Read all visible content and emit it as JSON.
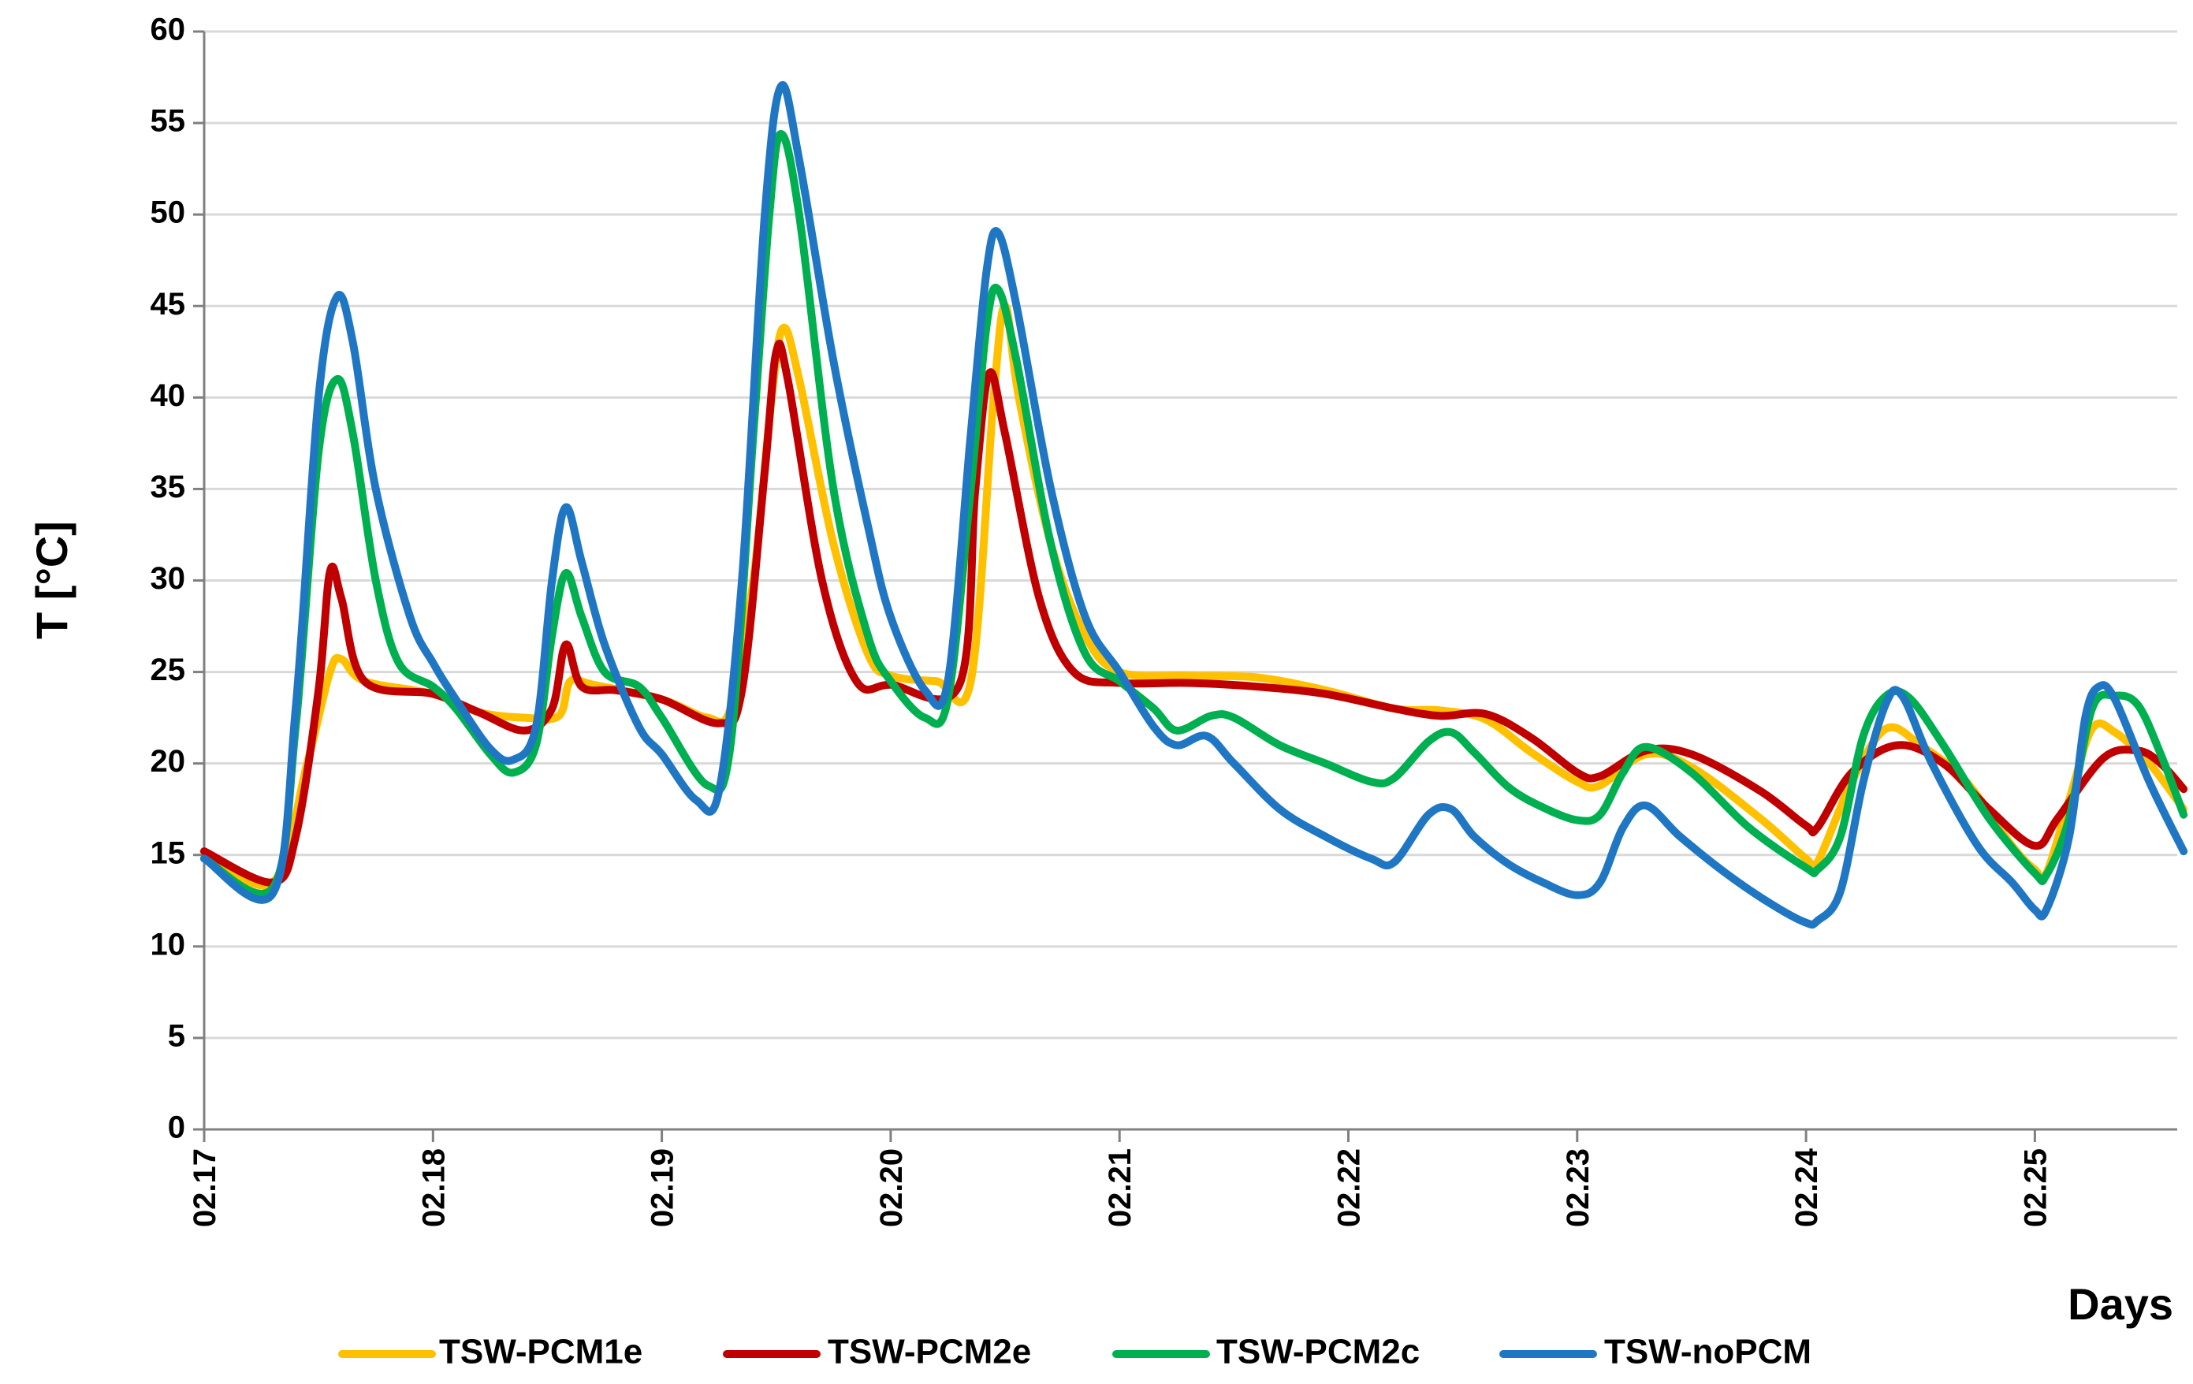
{
  "chart_data": {
    "type": "line",
    "title": "",
    "xlabel": "Days",
    "ylabel": "T [°C]",
    "xlim": [
      0,
      8.65
    ],
    "ylim": [
      0,
      60
    ],
    "yticks": [
      0,
      5,
      10,
      15,
      20,
      25,
      30,
      35,
      40,
      45,
      50,
      55,
      60
    ],
    "xticks": [
      {
        "x": 0,
        "label": "02.17"
      },
      {
        "x": 1,
        "label": "02.18"
      },
      {
        "x": 2,
        "label": "02.19"
      },
      {
        "x": 3,
        "label": "02.20"
      },
      {
        "x": 4,
        "label": "02.21"
      },
      {
        "x": 5,
        "label": "02.22"
      },
      {
        "x": 6,
        "label": "02.23"
      },
      {
        "x": 7,
        "label": "02.24"
      },
      {
        "x": 8,
        "label": "02.25"
      }
    ],
    "grid": true,
    "legend_position": "bottom",
    "series": [
      {
        "name": "TSW-PCM1e",
        "color": "#FFC000",
        "points": [
          [
            0,
            15.2
          ],
          [
            0.3,
            13.5
          ],
          [
            0.45,
            20
          ],
          [
            0.55,
            25
          ],
          [
            0.6,
            25.7
          ],
          [
            0.7,
            24.5
          ],
          [
            1.0,
            23.8
          ],
          [
            1.2,
            22.8
          ],
          [
            1.4,
            22.5
          ],
          [
            1.55,
            22.6
          ],
          [
            1.6,
            24.5
          ],
          [
            1.7,
            24.3
          ],
          [
            2.0,
            23.5
          ],
          [
            2.2,
            22.5
          ],
          [
            2.3,
            23
          ],
          [
            2.4,
            30
          ],
          [
            2.48,
            40
          ],
          [
            2.53,
            43.8
          ],
          [
            2.6,
            41
          ],
          [
            2.75,
            32
          ],
          [
            2.9,
            26
          ],
          [
            3.0,
            24.8
          ],
          [
            3.2,
            24.5
          ],
          [
            3.35,
            24.5
          ],
          [
            3.45,
            40
          ],
          [
            3.5,
            45
          ],
          [
            3.56,
            40
          ],
          [
            3.7,
            32
          ],
          [
            3.85,
            27
          ],
          [
            4.0,
            25
          ],
          [
            4.3,
            24.8
          ],
          [
            4.6,
            24.7
          ],
          [
            4.9,
            24
          ],
          [
            5.2,
            23
          ],
          [
            5.4,
            22.9
          ],
          [
            5.6,
            22.4
          ],
          [
            5.8,
            20.6
          ],
          [
            6.0,
            19
          ],
          [
            6.1,
            18.8
          ],
          [
            6.3,
            20.5
          ],
          [
            6.5,
            19.8
          ],
          [
            6.8,
            17
          ],
          [
            7.0,
            14.8
          ],
          [
            7.05,
            14.6
          ],
          [
            7.2,
            19
          ],
          [
            7.35,
            21.9
          ],
          [
            7.5,
            21
          ],
          [
            7.7,
            19
          ],
          [
            7.9,
            15.5
          ],
          [
            8.0,
            14.2
          ],
          [
            8.05,
            14
          ],
          [
            8.15,
            18
          ],
          [
            8.25,
            21.9
          ],
          [
            8.35,
            21.7
          ],
          [
            8.5,
            20
          ],
          [
            8.65,
            17.5
          ]
        ]
      },
      {
        "name": "TSW-PCM2e",
        "color": "#C00000",
        "points": [
          [
            0,
            15.2
          ],
          [
            0.3,
            13.5
          ],
          [
            0.4,
            16
          ],
          [
            0.5,
            24
          ],
          [
            0.55,
            30.5
          ],
          [
            0.6,
            29
          ],
          [
            0.7,
            24.5
          ],
          [
            1.0,
            23.8
          ],
          [
            1.2,
            22.8
          ],
          [
            1.4,
            21.8
          ],
          [
            1.52,
            23
          ],
          [
            1.58,
            26.5
          ],
          [
            1.65,
            24.2
          ],
          [
            1.8,
            24
          ],
          [
            2.0,
            23.5
          ],
          [
            2.25,
            22.2
          ],
          [
            2.35,
            24
          ],
          [
            2.45,
            36
          ],
          [
            2.5,
            42.5
          ],
          [
            2.55,
            41
          ],
          [
            2.7,
            30
          ],
          [
            2.85,
            24.5
          ],
          [
            3.0,
            24.3
          ],
          [
            3.3,
            24.3
          ],
          [
            3.37,
            35
          ],
          [
            3.43,
            41.3
          ],
          [
            3.5,
            38
          ],
          [
            3.65,
            29
          ],
          [
            3.8,
            25
          ],
          [
            4.0,
            24.4
          ],
          [
            4.3,
            24.4
          ],
          [
            4.6,
            24.2
          ],
          [
            4.9,
            23.8
          ],
          [
            5.2,
            23
          ],
          [
            5.4,
            22.6
          ],
          [
            5.6,
            22.7
          ],
          [
            5.8,
            21.4
          ],
          [
            6.0,
            19.5
          ],
          [
            6.1,
            19.3
          ],
          [
            6.3,
            20.7
          ],
          [
            6.5,
            20.5
          ],
          [
            6.8,
            18.5
          ],
          [
            7.0,
            16.6
          ],
          [
            7.05,
            16.5
          ],
          [
            7.2,
            19.5
          ],
          [
            7.4,
            21
          ],
          [
            7.6,
            20
          ],
          [
            7.8,
            17.5
          ],
          [
            8.0,
            15.5
          ],
          [
            8.1,
            17
          ],
          [
            8.3,
            20.3
          ],
          [
            8.45,
            20.7
          ],
          [
            8.55,
            20
          ],
          [
            8.65,
            18.6
          ]
        ]
      },
      {
        "name": "TSW-PCM2c",
        "color": "#00B050",
        "points": [
          [
            0,
            14.8
          ],
          [
            0.3,
            13.2
          ],
          [
            0.4,
            22
          ],
          [
            0.5,
            37
          ],
          [
            0.58,
            41
          ],
          [
            0.65,
            38
          ],
          [
            0.75,
            30
          ],
          [
            0.85,
            25.5
          ],
          [
            1.0,
            24.2
          ],
          [
            1.1,
            23
          ],
          [
            1.25,
            20.5
          ],
          [
            1.35,
            19.5
          ],
          [
            1.45,
            21
          ],
          [
            1.52,
            27
          ],
          [
            1.58,
            30.4
          ],
          [
            1.65,
            28
          ],
          [
            1.75,
            25
          ],
          [
            1.9,
            24.2
          ],
          [
            2.0,
            22.5
          ],
          [
            2.2,
            18.8
          ],
          [
            2.3,
            21
          ],
          [
            2.4,
            38
          ],
          [
            2.47,
            50
          ],
          [
            2.52,
            54.4
          ],
          [
            2.6,
            50
          ],
          [
            2.75,
            35
          ],
          [
            2.9,
            27
          ],
          [
            3.0,
            24.5
          ],
          [
            3.15,
            22.5
          ],
          [
            3.25,
            23.5
          ],
          [
            3.35,
            35
          ],
          [
            3.42,
            44
          ],
          [
            3.47,
            45.9
          ],
          [
            3.55,
            42
          ],
          [
            3.7,
            32
          ],
          [
            3.85,
            26
          ],
          [
            4.0,
            24.5
          ],
          [
            4.15,
            23
          ],
          [
            4.25,
            21.8
          ],
          [
            4.4,
            22.6
          ],
          [
            4.5,
            22.5
          ],
          [
            4.7,
            21
          ],
          [
            4.9,
            20
          ],
          [
            5.1,
            19
          ],
          [
            5.2,
            19.2
          ],
          [
            5.35,
            21.2
          ],
          [
            5.45,
            21.7
          ],
          [
            5.55,
            20.6
          ],
          [
            5.7,
            18.7
          ],
          [
            5.85,
            17.6
          ],
          [
            6.0,
            16.9
          ],
          [
            6.1,
            17.2
          ],
          [
            6.2,
            19.5
          ],
          [
            6.3,
            20.9
          ],
          [
            6.5,
            19.5
          ],
          [
            6.75,
            16.5
          ],
          [
            7.0,
            14.3
          ],
          [
            7.05,
            14.2
          ],
          [
            7.15,
            16
          ],
          [
            7.25,
            21.5
          ],
          [
            7.35,
            23.7
          ],
          [
            7.45,
            23.6
          ],
          [
            7.6,
            21
          ],
          [
            7.8,
            17
          ],
          [
            8.0,
            14
          ],
          [
            8.05,
            13.9
          ],
          [
            8.15,
            17
          ],
          [
            8.25,
            23
          ],
          [
            8.35,
            23.7
          ],
          [
            8.45,
            23.2
          ],
          [
            8.55,
            20.5
          ],
          [
            8.65,
            17.2
          ]
        ]
      },
      {
        "name": "TSW-noPCM",
        "color": "#1F77C4",
        "points": [
          [
            0,
            14.8
          ],
          [
            0.3,
            12.9
          ],
          [
            0.4,
            23
          ],
          [
            0.5,
            40
          ],
          [
            0.58,
            45.5
          ],
          [
            0.65,
            43
          ],
          [
            0.75,
            35
          ],
          [
            0.9,
            28
          ],
          [
            1.0,
            25.5
          ],
          [
            1.1,
            23.5
          ],
          [
            1.25,
            20.8
          ],
          [
            1.35,
            20.2
          ],
          [
            1.45,
            22
          ],
          [
            1.52,
            30
          ],
          [
            1.58,
            34
          ],
          [
            1.65,
            31
          ],
          [
            1.75,
            26.5
          ],
          [
            1.9,
            22
          ],
          [
            2.0,
            20.5
          ],
          [
            2.15,
            18
          ],
          [
            2.25,
            18.5
          ],
          [
            2.35,
            30
          ],
          [
            2.45,
            50
          ],
          [
            2.52,
            57
          ],
          [
            2.6,
            53
          ],
          [
            2.75,
            42
          ],
          [
            2.9,
            33
          ],
          [
            3.0,
            28
          ],
          [
            3.15,
            24
          ],
          [
            3.25,
            24.5
          ],
          [
            3.35,
            38
          ],
          [
            3.42,
            47
          ],
          [
            3.47,
            49
          ],
          [
            3.55,
            45
          ],
          [
            3.7,
            35
          ],
          [
            3.85,
            28
          ],
          [
            4.0,
            25
          ],
          [
            4.15,
            22
          ],
          [
            4.25,
            21
          ],
          [
            4.38,
            21.5
          ],
          [
            4.5,
            20
          ],
          [
            4.7,
            17.5
          ],
          [
            4.9,
            16
          ],
          [
            5.1,
            14.8
          ],
          [
            5.2,
            14.6
          ],
          [
            5.35,
            17.2
          ],
          [
            5.45,
            17.5
          ],
          [
            5.55,
            16
          ],
          [
            5.7,
            14.5
          ],
          [
            5.85,
            13.5
          ],
          [
            6.0,
            12.8
          ],
          [
            6.1,
            13.5
          ],
          [
            6.2,
            16.5
          ],
          [
            6.3,
            17.7
          ],
          [
            6.45,
            16
          ],
          [
            6.65,
            14
          ],
          [
            6.85,
            12.3
          ],
          [
            7.0,
            11.3
          ],
          [
            7.05,
            11.4
          ],
          [
            7.15,
            13
          ],
          [
            7.25,
            19
          ],
          [
            7.35,
            23.3
          ],
          [
            7.42,
            23.7
          ],
          [
            7.55,
            20
          ],
          [
            7.75,
            15.5
          ],
          [
            7.9,
            13.5
          ],
          [
            8.0,
            12
          ],
          [
            8.05,
            12
          ],
          [
            8.15,
            16
          ],
          [
            8.22,
            22.5
          ],
          [
            8.28,
            24.2
          ],
          [
            8.35,
            23.5
          ],
          [
            8.5,
            19
          ],
          [
            8.65,
            15.2
          ]
        ]
      }
    ]
  }
}
